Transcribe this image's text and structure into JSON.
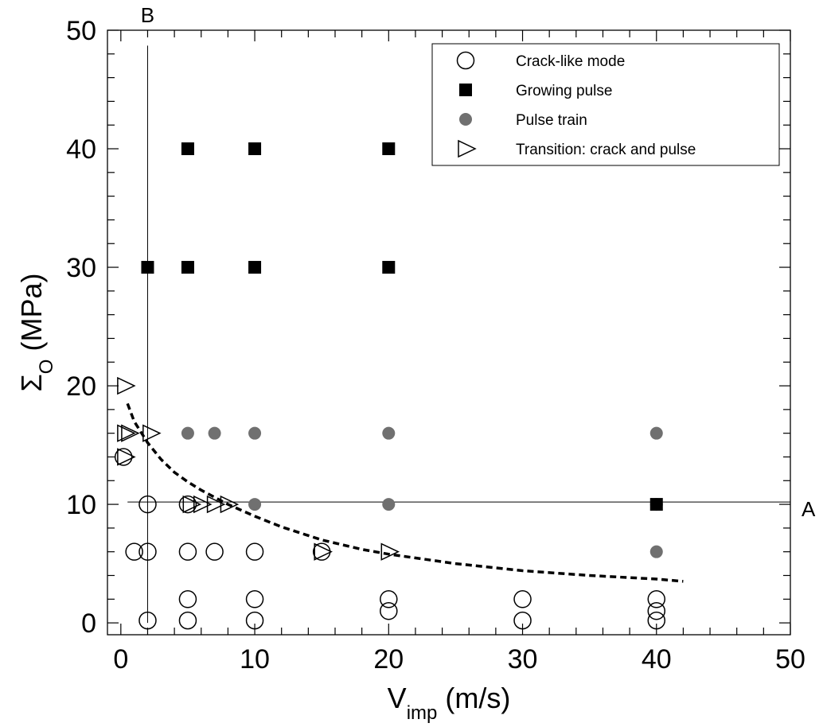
{
  "chart_data": {
    "type": "scatter",
    "xlabel": {
      "main": "V",
      "sub": "imp",
      "unit": " (m/s)"
    },
    "ylabel": {
      "main": "Σ",
      "sub": "O",
      "unit": " (MPa)"
    },
    "xlim": [
      -1,
      50
    ],
    "ylim": [
      -1,
      50
    ],
    "xticks": [
      0,
      10,
      20,
      30,
      40,
      50
    ],
    "yticks": [
      0,
      10,
      20,
      30,
      40,
      50
    ],
    "xtick_labels": [
      "0",
      "10",
      "20",
      "30",
      "40",
      "50"
    ],
    "ytick_labels": [
      "0",
      "10",
      "20",
      "30",
      "40",
      "50"
    ],
    "grid": false,
    "legend_position": "top-right",
    "series": [
      {
        "name": "Crack-like mode",
        "marker": "open-circle",
        "color": "#000000",
        "points": [
          [
            2,
            0.2
          ],
          [
            5,
            0.2
          ],
          [
            10,
            0.2
          ],
          [
            20,
            1
          ],
          [
            30,
            0.2
          ],
          [
            40,
            0.2
          ],
          [
            40,
            1
          ],
          [
            5,
            2
          ],
          [
            10,
            2
          ],
          [
            20,
            2
          ],
          [
            30,
            2
          ],
          [
            40,
            2
          ],
          [
            1,
            6
          ],
          [
            2,
            6
          ],
          [
            5,
            6
          ],
          [
            7,
            6
          ],
          [
            10,
            6
          ],
          [
            15,
            6
          ],
          [
            2,
            10
          ],
          [
            5,
            10
          ],
          [
            0.2,
            14
          ]
        ]
      },
      {
        "name": "Growing pulse",
        "marker": "filled-square",
        "color": "#000000",
        "points": [
          [
            5,
            40
          ],
          [
            10,
            40
          ],
          [
            20,
            40
          ],
          [
            2,
            30
          ],
          [
            5,
            30
          ],
          [
            10,
            30
          ],
          [
            20,
            30
          ],
          [
            40,
            10
          ]
        ]
      },
      {
        "name": "Pulse train",
        "marker": "filled-circle",
        "color": "#707070",
        "points": [
          [
            5,
            16
          ],
          [
            7,
            16
          ],
          [
            10,
            16
          ],
          [
            20,
            16
          ],
          [
            40,
            16
          ],
          [
            10,
            10
          ],
          [
            20,
            10
          ],
          [
            40,
            10
          ],
          [
            40,
            6
          ]
        ]
      },
      {
        "name": "Transition: crack and pulse",
        "marker": "open-triangle-right",
        "color": "#000000",
        "points": [
          [
            0.3,
            20
          ],
          [
            0.3,
            16
          ],
          [
            0.6,
            16
          ],
          [
            2.2,
            16
          ],
          [
            0.3,
            14
          ],
          [
            5.2,
            10
          ],
          [
            6,
            10
          ],
          [
            7,
            10
          ],
          [
            8,
            10
          ],
          [
            15,
            6
          ],
          [
            20,
            6
          ]
        ]
      }
    ],
    "fit_curve": {
      "style": "dashed",
      "color": "#000000",
      "points": [
        [
          0.5,
          18.5
        ],
        [
          1,
          17
        ],
        [
          2,
          15.2
        ],
        [
          3,
          13.8
        ],
        [
          4,
          12.7
        ],
        [
          5,
          11.9
        ],
        [
          6,
          11.2
        ],
        [
          8,
          10
        ],
        [
          10,
          9
        ],
        [
          12,
          8.1
        ],
        [
          15,
          7
        ],
        [
          18,
          6.2
        ],
        [
          20,
          5.8
        ],
        [
          25,
          5
        ],
        [
          30,
          4.4
        ],
        [
          35,
          4
        ],
        [
          40,
          3.7
        ],
        [
          42,
          3.5
        ]
      ]
    },
    "reference_lines": [
      {
        "label": "A",
        "orientation": "horizontal",
        "value": 10.2,
        "from": 0.5,
        "to": 50
      },
      {
        "label": "B",
        "orientation": "vertical",
        "value": 2.0,
        "from": 0,
        "to": 48.7
      }
    ]
  }
}
